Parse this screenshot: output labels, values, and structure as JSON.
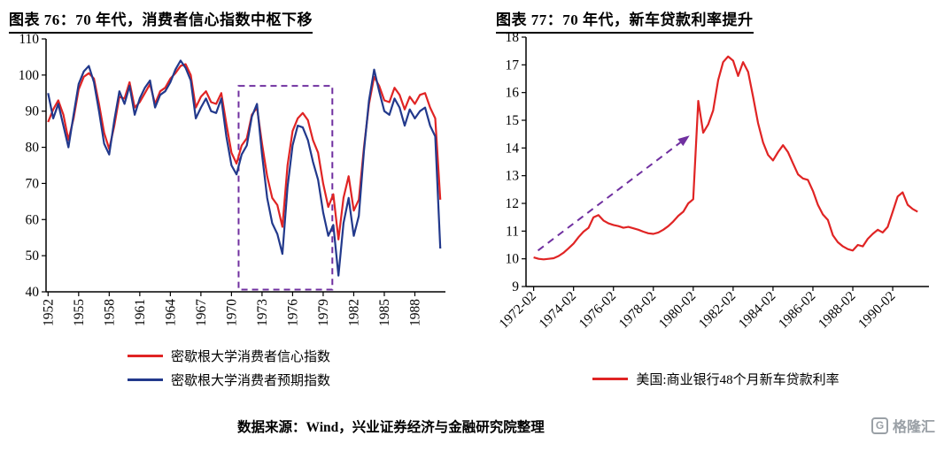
{
  "figure76": {
    "title": "图表 76：70 年代，消费者信心指数中枢下移",
    "legend": [
      "密歇根大学消费者信心指数",
      "密歇根大学消费者预期指数"
    ]
  },
  "figure77": {
    "title": "图表 77：70 年代，新车贷款利率提升",
    "legend": [
      "美国:商业银行48个月新车贷款利率"
    ]
  },
  "footer": {
    "source": "数据来源：Wind，兴业证券经济与金融研究院整理",
    "logo_text": "格隆汇"
  },
  "colors": {
    "red": "#e02424",
    "navy": "#22398c",
    "purple": "#7030a0",
    "logo_grey": "#9aa0a6",
    "axis": "#000000"
  },
  "chart_data": [
    {
      "type": "line",
      "title": "图表 76：70 年代，消费者信心指数中枢下移",
      "xlabel": "",
      "ylabel": "",
      "xlim": [
        1951.8,
        1991.0
      ],
      "ylim": [
        40,
        110
      ],
      "y_ticks": [
        40,
        50,
        60,
        70,
        80,
        90,
        100,
        110
      ],
      "x_ticks": [
        1952,
        1955,
        1958,
        1961,
        1964,
        1967,
        1970,
        1973,
        1976,
        1979,
        1982,
        1985,
        1988
      ],
      "x_tick_labels": [
        "1952",
        "1955",
        "1958",
        "1961",
        "1964",
        "1967",
        "1970",
        "1973",
        "1976",
        "1979",
        "1982",
        "1985",
        "1988"
      ],
      "x_tick_rotation": -90,
      "grid": false,
      "legend_position": "bottom",
      "x_start": 1952.0,
      "x_step": 0.5,
      "series": [
        {
          "name": "密歇根大学消费者信心指数",
          "color": "#e02424",
          "values": [
            87,
            90.5,
            93,
            89,
            82,
            88,
            96,
            99.5,
            100.5,
            99,
            92,
            84,
            79.5,
            86,
            94,
            93.5,
            98,
            91,
            92.5,
            95,
            97.5,
            92,
            95.5,
            96.5,
            99,
            100.5,
            102.5,
            103,
            100,
            91,
            94,
            95.5,
            92.5,
            92,
            95,
            86.5,
            78.5,
            75.5,
            80.5,
            82.5,
            89,
            91,
            81,
            72,
            66,
            64,
            58,
            75,
            84.5,
            88,
            89.5,
            87.5,
            82,
            78.5,
            70,
            63.5,
            67,
            54.5,
            66,
            72,
            62.5,
            65.5,
            80,
            92,
            99.5,
            97,
            93,
            92.5,
            96.5,
            94.5,
            90.5,
            94,
            92,
            94.5,
            95,
            91,
            88,
            65.5
          ]
        },
        {
          "name": "密歇根大学消费者预期指数",
          "color": "#22398c",
          "values": [
            95,
            88,
            92,
            86,
            80,
            89,
            97.5,
            101,
            102.5,
            98,
            90,
            81,
            78,
            87.5,
            95.5,
            92,
            97,
            89,
            93.5,
            96.5,
            98.5,
            91,
            94.5,
            95.5,
            98,
            101.5,
            104,
            102,
            98.5,
            88,
            91,
            93.5,
            90,
            89.5,
            93.5,
            83,
            75,
            72.5,
            78,
            80.5,
            88.5,
            92,
            78,
            66,
            59,
            56,
            50.5,
            69,
            80.5,
            86,
            85.5,
            82,
            76,
            71,
            62,
            55.5,
            58.5,
            44.5,
            59,
            66,
            55.5,
            61,
            79,
            93,
            101.5,
            95.5,
            90,
            89,
            93.5,
            91,
            86,
            90.5,
            88,
            90,
            91,
            86,
            83,
            52
          ]
        }
      ],
      "annotations": [
        {
          "type": "rect",
          "x": [
            1970.7,
            1979.9
          ],
          "y": [
            40.6,
            97
          ],
          "color": "#7030a0",
          "style": "dashed"
        }
      ]
    },
    {
      "type": "line",
      "title": "图表 77：70 年代，新车贷款利率提升",
      "xlabel": "",
      "ylabel": "",
      "xlim": [
        1971.7,
        1991.9
      ],
      "ylim": [
        9,
        18
      ],
      "y_ticks": [
        9,
        10,
        11,
        12,
        13,
        14,
        15,
        16,
        17,
        18
      ],
      "x_ticks": [
        1972.083,
        1974.083,
        1976.083,
        1978.083,
        1980.083,
        1982.083,
        1984.083,
        1986.083,
        1988.083,
        1990.083
      ],
      "x_tick_labels": [
        "1972-02",
        "1974-02",
        "1976-02",
        "1978-02",
        "1980-02",
        "1982-02",
        "1984-02",
        "1986-02",
        "1988-02",
        "1990-02"
      ],
      "x_tick_rotation": -45,
      "grid": false,
      "legend_position": "bottom",
      "x_start": 1972.083,
      "x_step": 0.25,
      "series": [
        {
          "name": "美国:商业银行48个月新车贷款利率",
          "color": "#e02424",
          "values": [
            10.05,
            10.0,
            9.98,
            10.0,
            10.02,
            10.1,
            10.22,
            10.38,
            10.55,
            10.78,
            10.98,
            11.12,
            11.5,
            11.58,
            11.38,
            11.28,
            11.22,
            11.18,
            11.12,
            11.15,
            11.1,
            11.05,
            10.98,
            10.92,
            10.9,
            10.95,
            11.05,
            11.18,
            11.35,
            11.55,
            11.7,
            12.0,
            12.15,
            15.7,
            14.55,
            14.85,
            15.35,
            16.45,
            17.1,
            17.3,
            17.15,
            16.6,
            17.1,
            16.75,
            15.85,
            14.9,
            14.2,
            13.75,
            13.55,
            13.85,
            14.1,
            13.85,
            13.45,
            13.05,
            12.9,
            12.85,
            12.45,
            11.95,
            11.6,
            11.4,
            10.85,
            10.6,
            10.45,
            10.35,
            10.3,
            10.5,
            10.45,
            10.72,
            10.9,
            11.05,
            10.95,
            11.15,
            11.7,
            12.25,
            12.4,
            11.95,
            11.8,
            11.7
          ]
        }
      ],
      "annotations": [
        {
          "type": "arrow",
          "from": [
            1972.3,
            10.3
          ],
          "to": [
            1979.9,
            14.45
          ],
          "color": "#7030a0",
          "style": "dashed"
        }
      ]
    }
  ]
}
